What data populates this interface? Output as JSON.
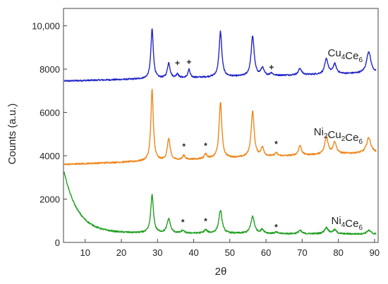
{
  "chart_data": {
    "type": "line",
    "xlabel": "2θ",
    "ylabel": "Counts (a.u.)",
    "xlim": [
      4,
      91
    ],
    "ylim": [
      0,
      10800
    ],
    "x_ticks": [
      10,
      20,
      30,
      40,
      50,
      60,
      70,
      80,
      90
    ],
    "y_ticks": [
      0,
      2000,
      4000,
      6000,
      8000,
      10000
    ],
    "x_tick_labels": [
      "10",
      "20",
      "30",
      "40",
      "50",
      "60",
      "70",
      "80",
      "90"
    ],
    "y_tick_labels": [
      "0",
      "2000",
      "4000",
      "6000",
      "8000",
      "10,000"
    ],
    "grid": false,
    "series": [
      {
        "name": "Cu4Ce6",
        "label_main": "Cu",
        "label_parts": [
          [
            "Cu",
            "4"
          ],
          [
            "Ce",
            "6"
          ]
        ],
        "color": "#2226c8",
        "baseline_start": 7450,
        "baseline_end": 7820,
        "peaks": [
          {
            "x": 28.5,
            "h": 2300,
            "w": 0.4
          },
          {
            "x": 33.1,
            "h": 700,
            "w": 0.45
          },
          {
            "x": 35.5,
            "h": 200,
            "w": 0.35
          },
          {
            "x": 38.7,
            "h": 380,
            "w": 0.35
          },
          {
            "x": 47.4,
            "h": 2100,
            "w": 0.45
          },
          {
            "x": 56.3,
            "h": 1850,
            "w": 0.5
          },
          {
            "x": 59.0,
            "h": 350,
            "w": 0.5
          },
          {
            "x": 61.5,
            "h": 120,
            "w": 0.4
          },
          {
            "x": 69.4,
            "h": 300,
            "w": 0.5
          },
          {
            "x": 76.7,
            "h": 700,
            "w": 0.55
          },
          {
            "x": 79.0,
            "h": 450,
            "w": 0.55
          },
          {
            "x": 88.4,
            "h": 1000,
            "w": 0.7
          }
        ],
        "markers": [
          {
            "x": 35.5,
            "y": 8150,
            "symbol": "+"
          },
          {
            "x": 38.7,
            "y": 8200,
            "symbol": "+"
          },
          {
            "x": 61.5,
            "y": 7950,
            "symbol": "+"
          }
        ]
      },
      {
        "name": "Ni2Cu2Ce6",
        "label_parts": [
          [
            "Ni",
            "2"
          ],
          [
            "Cu",
            "2"
          ],
          [
            "Ce",
            "6"
          ]
        ],
        "color": "#f0861a",
        "baseline_start": 3600,
        "baseline_end": 4150,
        "peaks": [
          {
            "x": 28.5,
            "h": 3300,
            "w": 0.4
          },
          {
            "x": 33.1,
            "h": 1000,
            "w": 0.45
          },
          {
            "x": 37.3,
            "h": 200,
            "w": 0.4
          },
          {
            "x": 43.3,
            "h": 220,
            "w": 0.45
          },
          {
            "x": 47.4,
            "h": 2600,
            "w": 0.45
          },
          {
            "x": 56.3,
            "h": 2100,
            "w": 0.5
          },
          {
            "x": 59.0,
            "h": 400,
            "w": 0.5
          },
          {
            "x": 62.8,
            "h": 150,
            "w": 0.45
          },
          {
            "x": 69.4,
            "h": 450,
            "w": 0.5
          },
          {
            "x": 76.7,
            "h": 800,
            "w": 0.55
          },
          {
            "x": 79.0,
            "h": 550,
            "w": 0.55
          },
          {
            "x": 88.4,
            "h": 700,
            "w": 0.7
          }
        ],
        "markers": [
          {
            "x": 37.3,
            "y": 4300,
            "symbol": "*"
          },
          {
            "x": 43.3,
            "y": 4330,
            "symbol": "*"
          },
          {
            "x": 62.8,
            "y": 4400,
            "symbol": "*"
          }
        ]
      },
      {
        "name": "Ni4Ce6",
        "label_parts": [
          [
            "Ni",
            "4"
          ],
          [
            "Ce",
            "6"
          ]
        ],
        "color": "#21a021",
        "baseline_start": 450,
        "baseline_end": 380,
        "decay": {
          "amp": 2800,
          "tau": 3.8,
          "start": 4.2
        },
        "peaks": [
          {
            "x": 28.5,
            "h": 1750,
            "w": 0.45
          },
          {
            "x": 33.1,
            "h": 650,
            "w": 0.55
          },
          {
            "x": 37.0,
            "h": 120,
            "w": 0.45
          },
          {
            "x": 43.3,
            "h": 150,
            "w": 0.5
          },
          {
            "x": 47.4,
            "h": 1050,
            "w": 0.55
          },
          {
            "x": 56.3,
            "h": 780,
            "w": 0.6
          },
          {
            "x": 59.0,
            "h": 170,
            "w": 0.55
          },
          {
            "x": 62.8,
            "h": 60,
            "w": 0.5
          },
          {
            "x": 69.4,
            "h": 150,
            "w": 0.55
          },
          {
            "x": 76.7,
            "h": 280,
            "w": 0.65
          },
          {
            "x": 79.0,
            "h": 180,
            "w": 0.6
          },
          {
            "x": 88.4,
            "h": 170,
            "w": 0.7
          }
        ],
        "markers": [
          {
            "x": 37.0,
            "y": 800,
            "symbol": "*"
          },
          {
            "x": 43.3,
            "y": 840,
            "symbol": "*"
          },
          {
            "x": 62.8,
            "y": 570,
            "symbol": "*"
          }
        ]
      }
    ]
  }
}
